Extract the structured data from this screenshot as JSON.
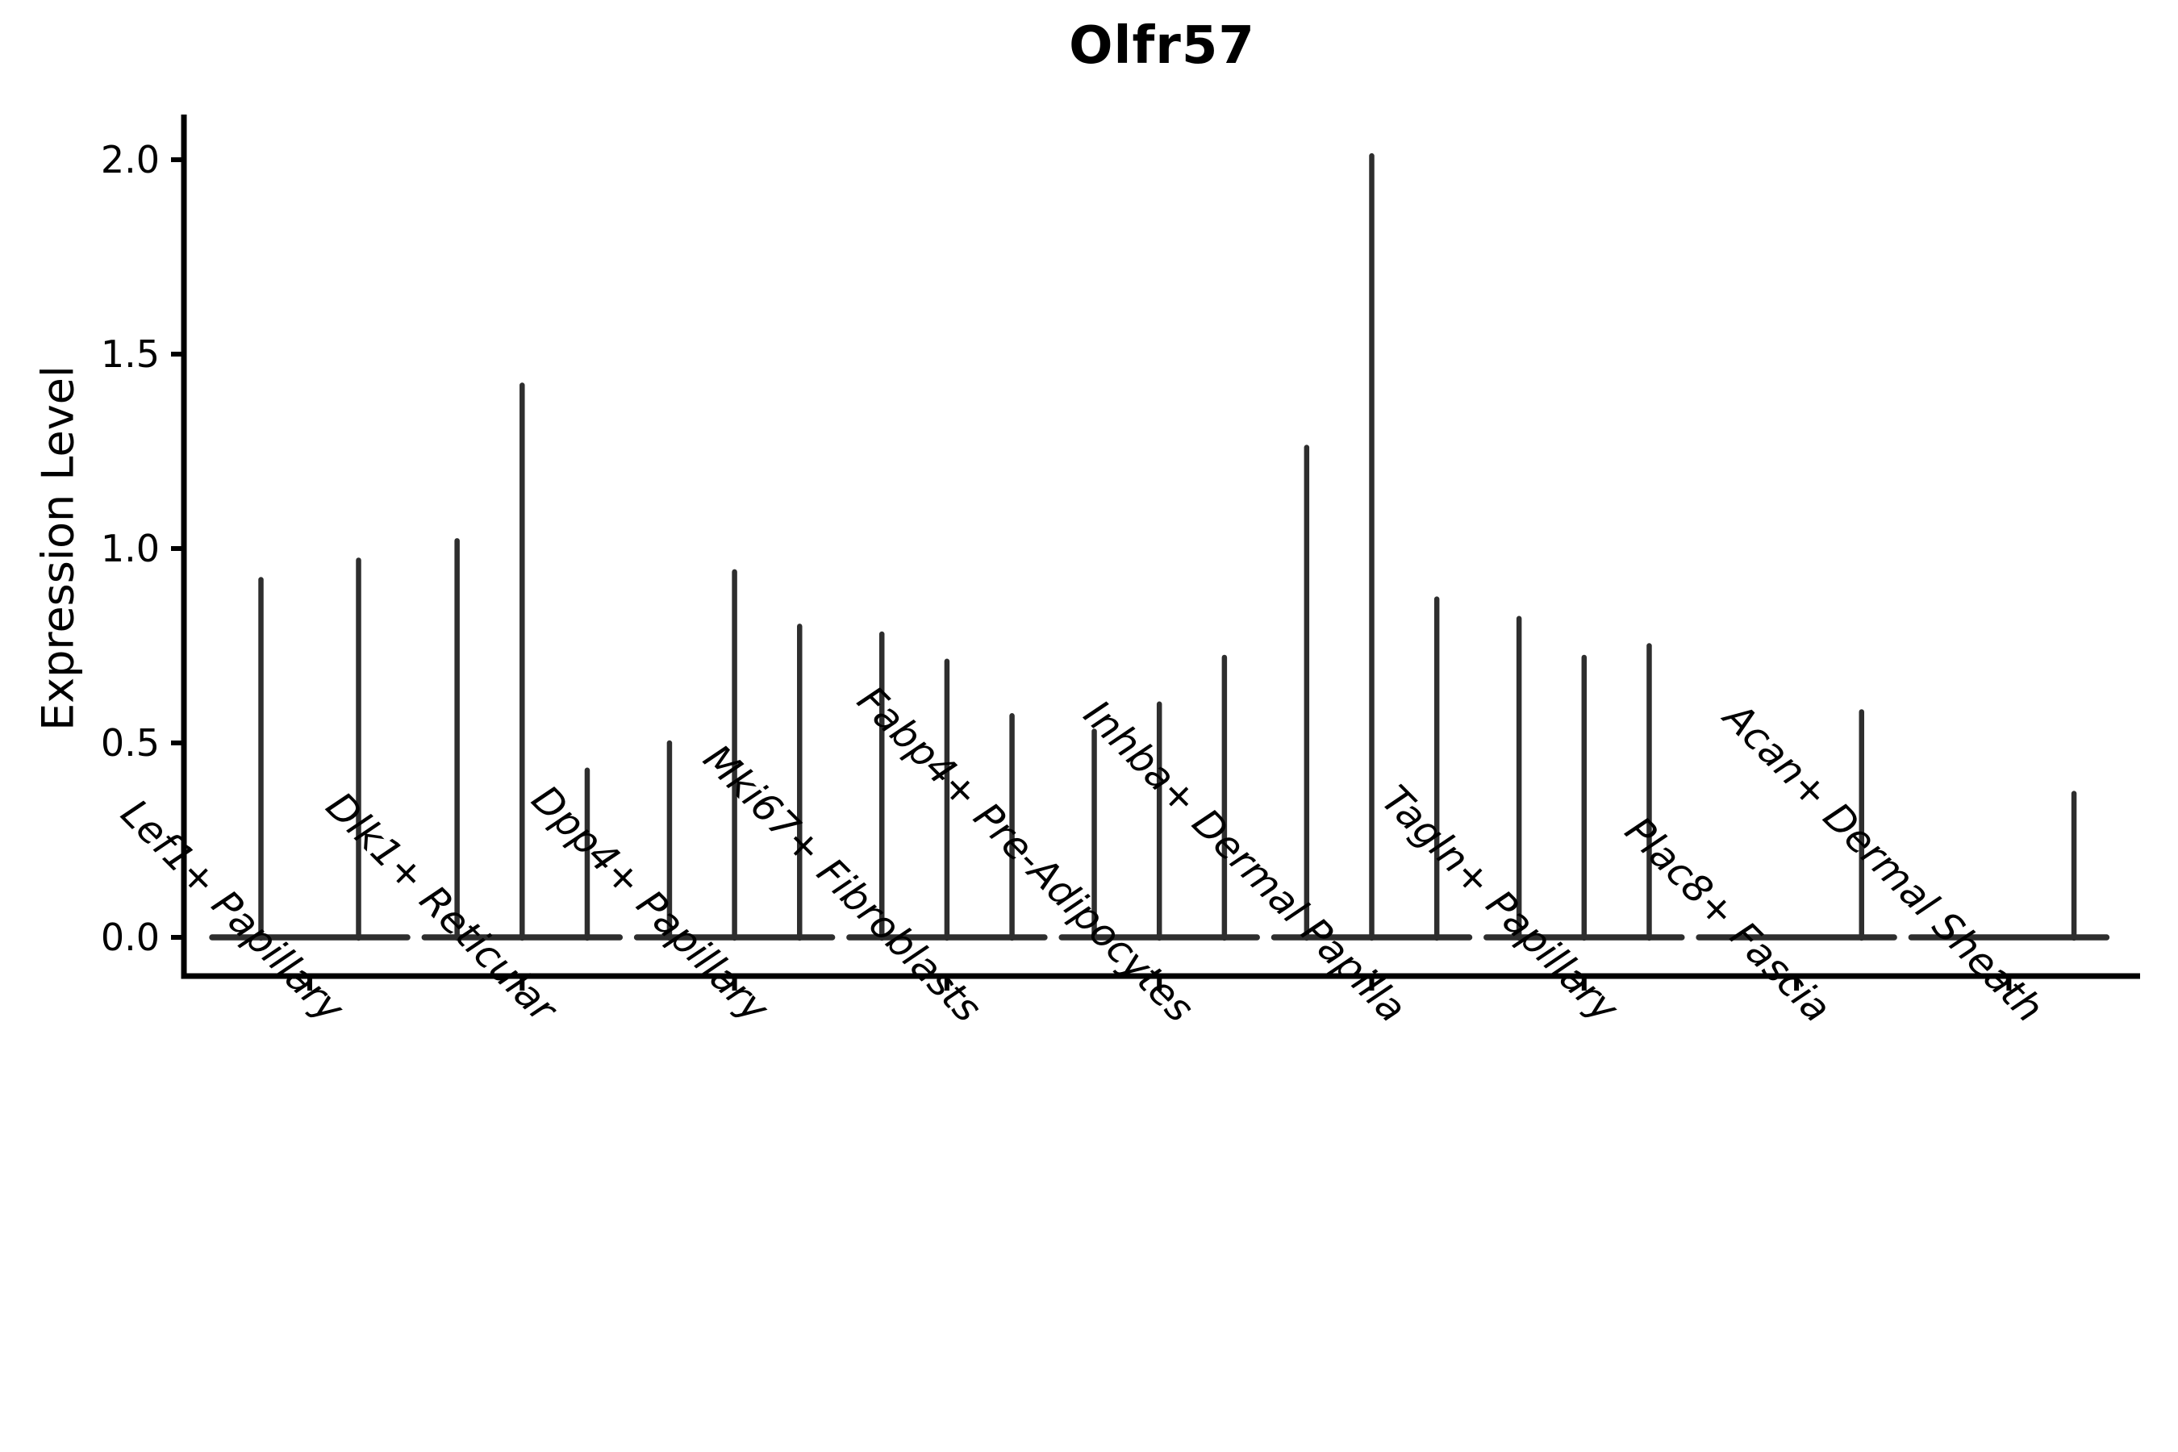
{
  "chart_data": {
    "type": "violin",
    "title": "Olfr57",
    "xlabel": "",
    "ylabel": "Expression Level",
    "ylim": [
      0,
      2.0
    ],
    "yticks": [
      0.0,
      0.5,
      1.0,
      1.5,
      2.0
    ],
    "ytick_labels": [
      "0.0",
      "0.5",
      "1.0",
      "1.5",
      "2.0"
    ],
    "grid": false,
    "legend": "none",
    "categories": [
      "Lef1+ Papillary",
      "Dlk1+ Reticular",
      "Dpp4+ Papillary",
      "Mki67+ Fibroblasts",
      "Fabp4+ Pre-Adipocytes",
      "Inhba+ Dermal Papilla",
      "Tagln+ Papillary",
      "Plac8+ Fascia",
      "Acan+ Dermal Sheath"
    ],
    "series": [
      {
        "category": "Lef1+ Papillary",
        "violin_max_values": [
          0.92,
          0.97
        ]
      },
      {
        "category": "Dlk1+ Reticular",
        "violin_max_values": [
          1.02,
          1.42,
          0.43
        ]
      },
      {
        "category": "Dpp4+ Papillary",
        "violin_max_values": [
          0.5,
          0.94,
          0.8
        ]
      },
      {
        "category": "Mki67+ Fibroblasts",
        "violin_max_values": [
          0.78,
          0.71,
          0.57
        ]
      },
      {
        "category": "Fabp4+ Pre-Adipocytes",
        "violin_max_values": [
          0.53,
          0.6,
          0.72
        ]
      },
      {
        "category": "Inhba+ Dermal Papilla",
        "violin_max_values": [
          1.26,
          2.01,
          0.87
        ]
      },
      {
        "category": "Tagln+ Papillary",
        "violin_max_values": [
          0.82,
          0.72,
          0.75
        ]
      },
      {
        "category": "Plac8+ Fascia",
        "violin_max_values": [
          0.0,
          0.0,
          0.58
        ]
      },
      {
        "category": "Acan+ Dermal Sheath",
        "violin_max_values": [
          0.0,
          0.0,
          0.37
        ]
      }
    ],
    "colors": {
      "background": "#ffffff",
      "violin_line": "#2e2e2e",
      "axis_line": "#000000",
      "text": "#000000"
    }
  }
}
